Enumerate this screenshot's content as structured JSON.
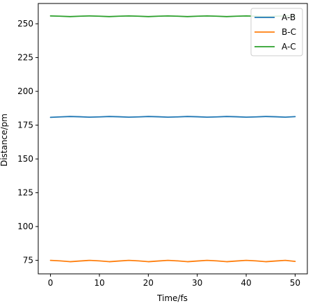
{
  "chart_data": {
    "type": "line",
    "xlabel": "Time/fs",
    "ylabel": "Distance/pm",
    "xlim": [
      -2.5,
      52.5
    ],
    "ylim": [
      65,
      265
    ],
    "xticks": [
      0,
      10,
      20,
      30,
      40,
      50
    ],
    "yticks": [
      75,
      100,
      125,
      150,
      175,
      200,
      225,
      250
    ],
    "grid": false,
    "legend": "top-right",
    "x": [
      0,
      2,
      4,
      6,
      8,
      10,
      12,
      14,
      16,
      18,
      20,
      22,
      24,
      26,
      28,
      30,
      32,
      34,
      36,
      38,
      40,
      42,
      44,
      46,
      48,
      50
    ],
    "series": [
      {
        "name": "A-B",
        "color": "#1f77b4",
        "values": [
          180.8,
          181.1,
          181.4,
          181.2,
          180.9,
          181.1,
          181.4,
          181.2,
          180.9,
          181.1,
          181.4,
          181.2,
          180.9,
          181.1,
          181.4,
          181.2,
          180.9,
          181.1,
          181.4,
          181.2,
          180.9,
          181.1,
          181.4,
          181.2,
          180.9,
          181.3
        ]
      },
      {
        "name": "B-C",
        "color": "#ff7f0e",
        "values": [
          75.0,
          74.6,
          74.0,
          74.5,
          75.0,
          74.6,
          74.0,
          74.5,
          75.0,
          74.6,
          74.0,
          74.5,
          75.0,
          74.6,
          74.0,
          74.5,
          75.0,
          74.6,
          74.0,
          74.5,
          75.0,
          74.6,
          74.0,
          74.5,
          75.0,
          74.2
        ]
      },
      {
        "name": "A-C",
        "color": "#2ca02c",
        "values": [
          255.8,
          255.6,
          255.3,
          255.6,
          255.8,
          255.6,
          255.3,
          255.6,
          255.8,
          255.6,
          255.3,
          255.6,
          255.8,
          255.6,
          255.3,
          255.6,
          255.8,
          255.6,
          255.3,
          255.6,
          255.8,
          255.6,
          255.3,
          255.6,
          255.8,
          255.5
        ]
      }
    ]
  }
}
